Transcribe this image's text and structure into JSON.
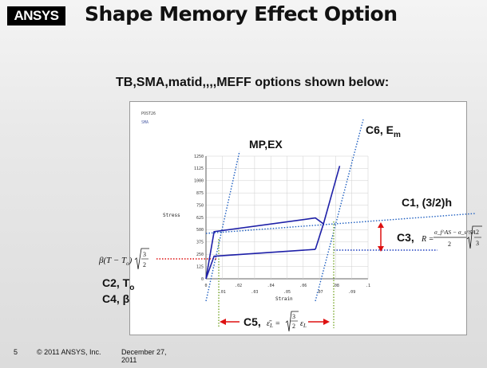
{
  "header": {
    "logo_text": "ANSYS",
    "title": "Shape Memory Effect Option"
  },
  "subtitle": "TB,SMA,matid,,,,MEFF options shown below:",
  "plot": {
    "tag_line1": "POST26",
    "tag_line2": "SMA",
    "ylabel": "Stress",
    "xlabel": "Strain",
    "y_ticks": [
      "1250",
      "1125",
      "1000",
      "875",
      "750",
      "625",
      "500",
      "375",
      "250",
      "125",
      "0"
    ],
    "x_ticks_top": [
      ".02",
      ".04",
      ".06",
      ".08",
      ".1"
    ],
    "x_ticks_bottom": [
      ".01",
      ".03",
      ".05",
      ".07",
      ".09"
    ],
    "x_tick_zero": "0"
  },
  "chart_data": {
    "type": "line",
    "xlabel": "Strain",
    "ylabel": "Stress",
    "xlim": [
      0,
      0.1
    ],
    "ylim": [
      0,
      1250
    ],
    "series": [
      {
        "x": [
          0,
          0.005,
          0.0675,
          0.0725,
          0.0825
        ],
        "y": [
          0,
          480,
          620,
          560,
          1150
        ]
      },
      {
        "x": [
          0,
          0.005,
          0.0675
        ],
        "y": [
          0,
          230,
          300
        ]
      }
    ]
  },
  "annotations": {
    "mp_ex": "MP,EX",
    "c6": "C6, E",
    "c6_sub": "m",
    "c1": "C1, (3/2)h",
    "c3": "C3,",
    "c3_formula": "R = ",
    "c3_num": "σ_f^AS − σ_s^SA",
    "c3_den": "2",
    "c3_sqrt": "2",
    "c3_sqrt_den": "3",
    "beta_expr": "β(T − T",
    "beta_sub": "o",
    "beta_sqrt_num": "3",
    "beta_sqrt_den": "2",
    "c2": "C2, T",
    "c2_sub": "o",
    "c4": "C4, β",
    "c5": "C5,",
    "c5_formula": "ε̄",
    "c5_sub": "L",
    "c5_eq": " = ",
    "c5_sqrt_num": "3",
    "c5_sqrt_den": "2",
    "c5_eps": "ε",
    "c5_eps_sub": "L"
  },
  "footer": {
    "page": "5",
    "copyright": "© 2011 ANSYS, Inc.",
    "date_line1": "December 27,",
    "date_line2": "2011"
  },
  "colors": {
    "curve": "#1e20a8",
    "guide_blue": "#1f5fc0",
    "guide_red": "#d11",
    "guide_green": "#6a9a2a",
    "logo_accent": "#f2b81d"
  }
}
